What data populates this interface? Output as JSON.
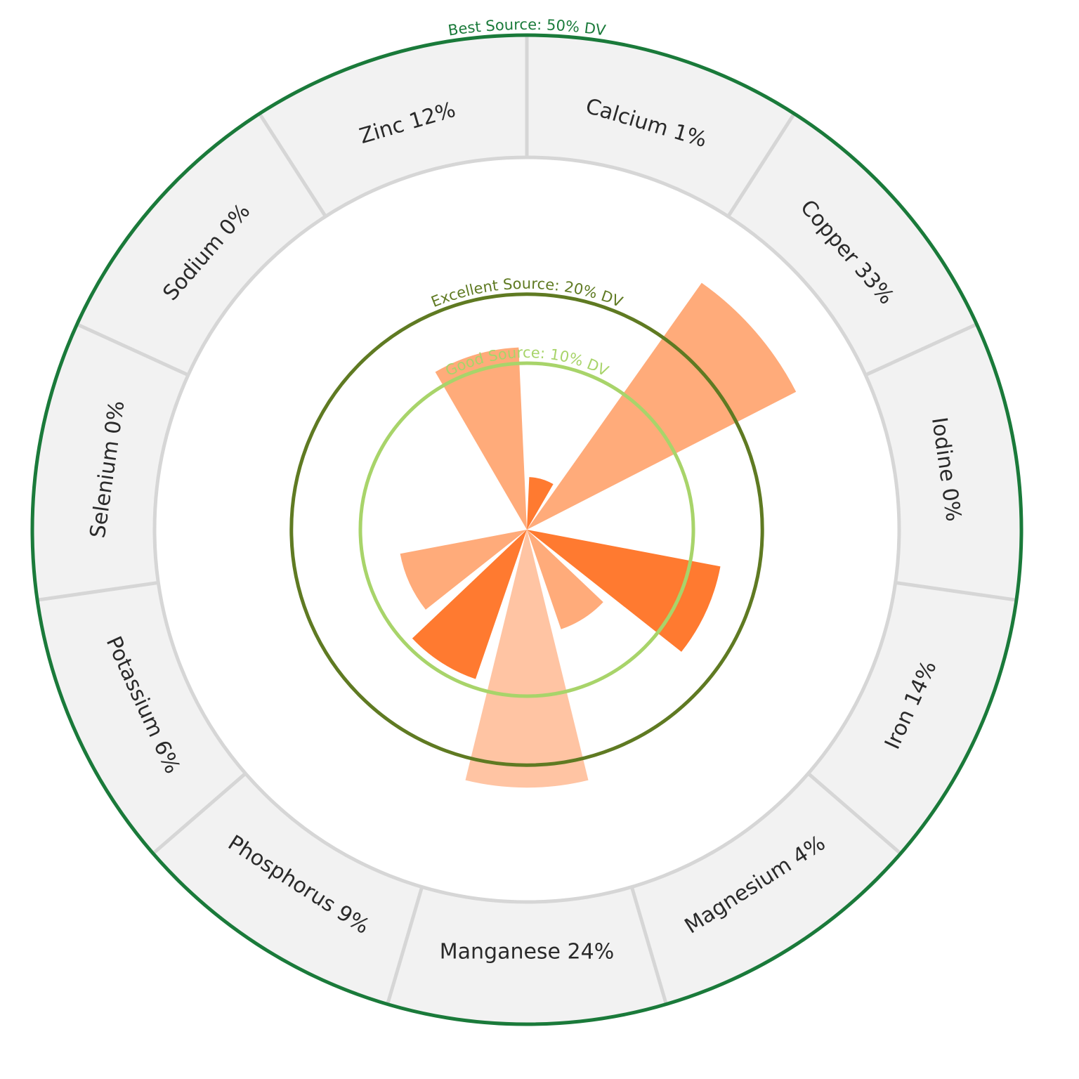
{
  "chart_data": {
    "type": "polar-bar",
    "title": "",
    "scale": "sqrt",
    "r_max": 50,
    "categories": [
      "Calcium",
      "Copper",
      "Iodine",
      "Iron",
      "Magnesium",
      "Manganese",
      "Phosphorus",
      "Potassium",
      "Selenium",
      "Sodium",
      "Zinc"
    ],
    "values": [
      1,
      33,
      0,
      14,
      4,
      24,
      9,
      6,
      0,
      0,
      12
    ],
    "segment_labels": [
      "Calcium 1%",
      "Copper 33%",
      "Iodine 0%",
      "Iron 14%",
      "Magnesium 4%",
      "Manganese 24%",
      "Phosphorus 9%",
      "Potassium 6%",
      "Selenium 0%",
      "Sodium 0%",
      "Zinc 12%"
    ],
    "bar_colors": [
      "#ff7a30",
      "#ffab7a",
      "#ffab7a",
      "#ff7a30",
      "#ffab7a",
      "#ffc4a3",
      "#ff7a30",
      "#ffab7a",
      "#ffab7a",
      "#ffab7a",
      "#ffab7a"
    ],
    "reference_circles": [
      {
        "value": 10,
        "label": "Good Source: 10% DV",
        "color": "#a8d46a"
      },
      {
        "value": 20,
        "label": "Excellent Source: 20% DV",
        "color": "#5f7a22"
      },
      {
        "value": 50,
        "label": "Best Source: 50% DV",
        "color": "#1a7a3a"
      }
    ],
    "ring_fill": "#f2f2f2",
    "divider_color": "#d6d6d6"
  }
}
